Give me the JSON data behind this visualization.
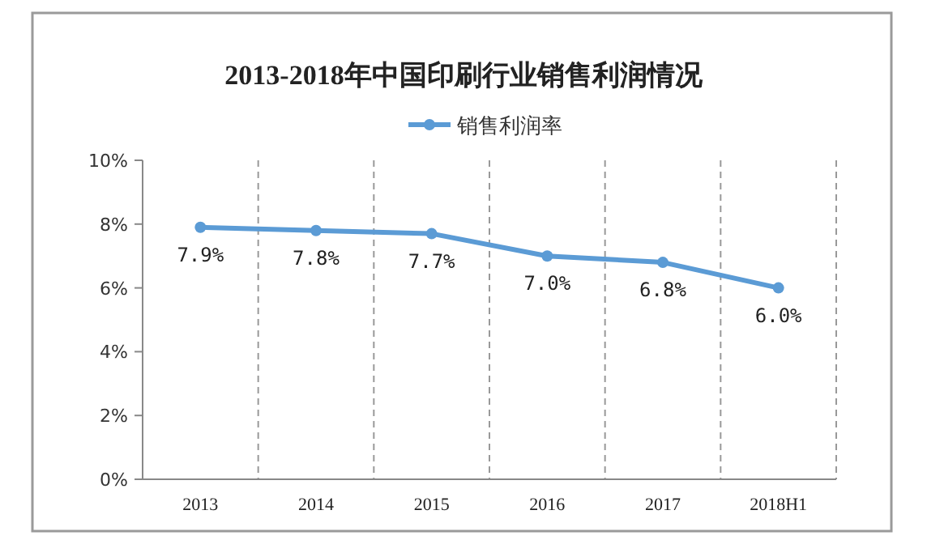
{
  "chart_data": {
    "type": "line",
    "title": "2013-2018年中国印刷行业销售利润情况",
    "categories": [
      "2013",
      "2014",
      "2015",
      "2016",
      "2017",
      "2018H1"
    ],
    "series": [
      {
        "name": "销售利润率",
        "color": "#5b9bd5",
        "values": [
          7.9,
          7.8,
          7.7,
          7.0,
          6.8,
          6.0
        ]
      }
    ],
    "value_labels": [
      "7.9%",
      "7.8%",
      "7.7%",
      "7.0%",
      "6.8%",
      "6.0%"
    ],
    "ylim": [
      0,
      10
    ],
    "yticks": [
      {
        "value": 0,
        "label": "0%"
      },
      {
        "value": 2,
        "label": "2%"
      },
      {
        "value": 4,
        "label": "4%"
      },
      {
        "value": 6,
        "label": "6%"
      },
      {
        "value": 8,
        "label": "8%"
      },
      {
        "value": 10,
        "label": "10%"
      }
    ],
    "grid": "x",
    "legend": "top",
    "marker": "circle",
    "line_style": "solid"
  }
}
